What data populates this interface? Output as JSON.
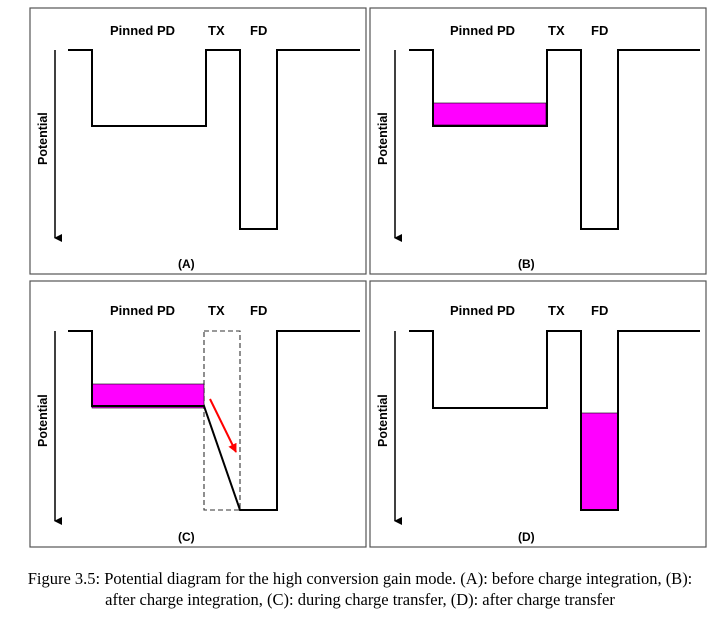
{
  "labels": {
    "pinned_pd": "Pinned PD",
    "tx": "TX",
    "fd": "FD",
    "potential": "Potential"
  },
  "panels": [
    {
      "tag": "(A)",
      "charge": "none"
    },
    {
      "tag": "(B)",
      "charge": "pinned-pd"
    },
    {
      "tag": "(C)",
      "charge": "transfer"
    },
    {
      "tag": "(D)",
      "charge": "fd"
    }
  ],
  "colors": {
    "charge": "#ff00ff",
    "arrow": "#ff0000",
    "frame": "#555555",
    "line": "#000000"
  },
  "caption": "Figure 3.5: Potential diagram for the high conversion gain mode. (A): before charge integration, (B): after charge integration, (C): during charge transfer, (D): after charge transfer"
}
